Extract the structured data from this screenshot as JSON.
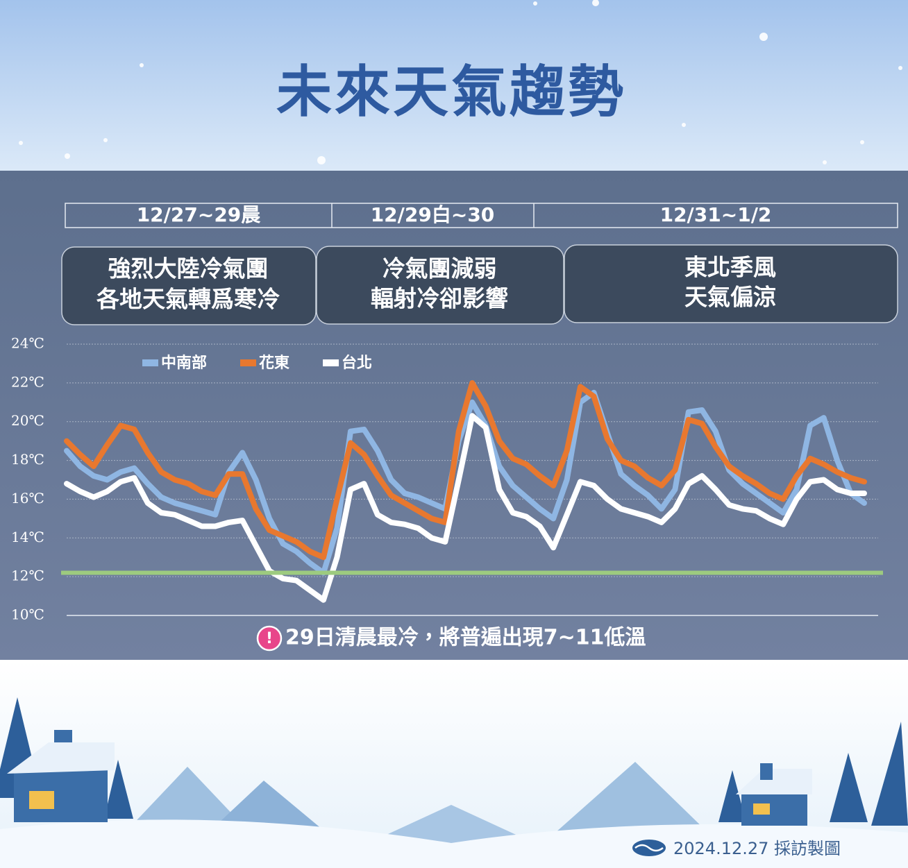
{
  "header": {
    "title": "未來天氣趨勢"
  },
  "periods": [
    {
      "date": "12/27~29晨",
      "lines": [
        "強烈大陸冷氣團",
        "各地天氣轉爲寒冷"
      ]
    },
    {
      "date": "12/29白~30",
      "lines": [
        "冷氣團減弱",
        "輻射冷卻影響"
      ]
    },
    {
      "date": "12/31~1/2",
      "lines": [
        "東北季風",
        "天氣偏涼"
      ]
    }
  ],
  "chart_data": {
    "type": "line",
    "ylim": [
      10,
      24
    ],
    "yticks": [
      {
        "value": 10,
        "label": "10℃"
      },
      {
        "value": 12,
        "label": "12℃"
      },
      {
        "value": 14,
        "label": "14℃"
      },
      {
        "value": 16,
        "label": "16℃"
      },
      {
        "value": 18,
        "label": "18℃"
      },
      {
        "value": 20,
        "label": "20℃"
      },
      {
        "value": 22,
        "label": "22℃"
      },
      {
        "value": 24,
        "label": "24℃"
      }
    ],
    "grid": true,
    "legend": "top-left",
    "reference_line": {
      "value": 12.2,
      "color": "#9dcb7f"
    },
    "series": [
      {
        "name": "中南部",
        "color": "#8fb6e3",
        "values": [
          18.5,
          17.7,
          17.2,
          17.0,
          17.4,
          17.6,
          16.8,
          16.1,
          15.8,
          15.6,
          15.4,
          15.2,
          17.4,
          18.4,
          17.0,
          15.0,
          13.7,
          13.3,
          12.7,
          12.2,
          14.5,
          19.5,
          19.6,
          18.5,
          17.0,
          16.3,
          16.1,
          15.8,
          15.5,
          19.0,
          21.0,
          19.8,
          17.7,
          16.7,
          16.1,
          15.5,
          15.0,
          17.0,
          21.0,
          21.5,
          19.4,
          17.3,
          16.7,
          16.2,
          15.5,
          16.5,
          20.5,
          20.6,
          19.5,
          17.5,
          16.8,
          16.3,
          15.8,
          15.3,
          16.5,
          19.8,
          20.2,
          18.0,
          16.3,
          15.8
        ]
      },
      {
        "name": "花東",
        "color": "#e8782f",
        "values": [
          19.0,
          18.3,
          17.7,
          18.8,
          19.8,
          19.6,
          18.4,
          17.4,
          17.0,
          16.8,
          16.4,
          16.2,
          17.3,
          17.3,
          15.5,
          14.4,
          14.1,
          13.8,
          13.3,
          13.0,
          16.0,
          18.9,
          18.3,
          17.2,
          16.2,
          15.8,
          15.4,
          15.0,
          14.8,
          19.5,
          22.0,
          20.8,
          19.0,
          18.1,
          17.8,
          17.2,
          16.7,
          18.5,
          21.8,
          21.3,
          19.1,
          18.0,
          17.7,
          17.1,
          16.7,
          17.5,
          20.1,
          19.9,
          18.7,
          17.7,
          17.2,
          16.8,
          16.3,
          16.0,
          17.2,
          18.1,
          17.8,
          17.4,
          17.1,
          16.9
        ]
      },
      {
        "name": "台北",
        "color": "#ffffff",
        "values": [
          16.8,
          16.4,
          16.1,
          16.4,
          16.9,
          17.1,
          15.8,
          15.3,
          15.2,
          14.9,
          14.6,
          14.6,
          14.8,
          14.9,
          13.6,
          12.3,
          11.9,
          11.8,
          11.3,
          10.8,
          13.0,
          16.5,
          16.8,
          15.2,
          14.8,
          14.7,
          14.5,
          14.0,
          13.8,
          17.0,
          20.3,
          19.7,
          16.5,
          15.3,
          15.1,
          14.6,
          13.5,
          15.2,
          16.9,
          16.7,
          16.0,
          15.5,
          15.3,
          15.1,
          14.8,
          15.5,
          16.8,
          17.2,
          16.5,
          15.7,
          15.5,
          15.4,
          15.0,
          14.7,
          16.0,
          16.9,
          17.0,
          16.5,
          16.3,
          16.3
        ]
      }
    ]
  },
  "note": {
    "icon": "!",
    "text": "29日清晨最冷，將普遍出現7~11低溫"
  },
  "footer": {
    "credit": "2024.12.27 採訪製圖"
  }
}
